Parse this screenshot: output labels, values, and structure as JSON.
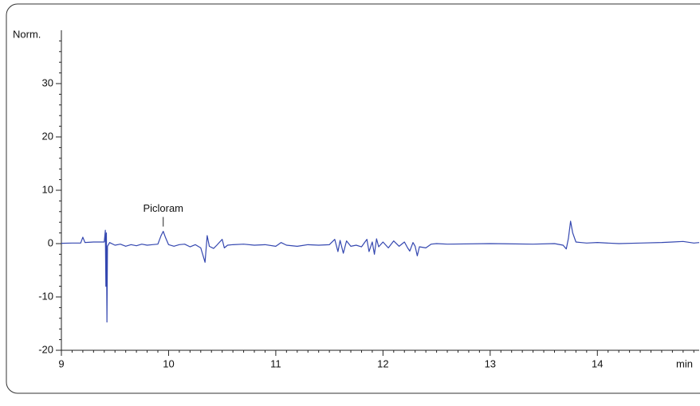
{
  "chart_data": {
    "type": "line",
    "y_label": "Norm.",
    "x_label": "min",
    "x": [
      9.0,
      9.1,
      9.18,
      9.2,
      9.22,
      9.3,
      9.4,
      9.41,
      9.415,
      9.42,
      9.425,
      9.43,
      9.45,
      9.5,
      9.55,
      9.6,
      9.65,
      9.7,
      9.75,
      9.8,
      9.85,
      9.9,
      9.93,
      9.95,
      9.97,
      10.0,
      10.05,
      10.1,
      10.15,
      10.2,
      10.25,
      10.3,
      10.34,
      10.36,
      10.38,
      10.42,
      10.45,
      10.5,
      10.52,
      10.55,
      10.6,
      10.7,
      10.8,
      10.9,
      11.0,
      11.05,
      11.1,
      11.2,
      11.3,
      11.4,
      11.5,
      11.55,
      11.58,
      11.6,
      11.63,
      11.66,
      11.7,
      11.75,
      11.8,
      11.85,
      11.87,
      11.9,
      11.92,
      11.94,
      11.96,
      12.0,
      12.05,
      12.1,
      12.15,
      12.2,
      12.23,
      12.25,
      12.28,
      12.3,
      12.32,
      12.34,
      12.4,
      12.45,
      12.5,
      12.6,
      13.0,
      13.4,
      13.6,
      13.68,
      13.71,
      13.73,
      13.75,
      13.77,
      13.8,
      13.85,
      13.9,
      14.0,
      14.2,
      14.4,
      14.6,
      14.7,
      14.8,
      14.9,
      14.95
    ],
    "series": [
      {
        "color": "#3447b0",
        "values": [
          0.05,
          0.1,
          0.1,
          1.2,
          0.2,
          0.3,
          0.3,
          2.5,
          -8,
          2,
          -14.7,
          -0.5,
          0.2,
          -0.3,
          -0.1,
          -0.5,
          -0.2,
          -0.4,
          -0.1,
          -0.3,
          -0.2,
          -0.1,
          1.5,
          2.3,
          1.2,
          -0.2,
          -0.5,
          -0.2,
          -0.1,
          -0.6,
          -0.2,
          -0.8,
          -3.5,
          1.5,
          -0.5,
          -0.9,
          -0.3,
          0.8,
          -0.8,
          -0.3,
          -0.2,
          -0.1,
          -0.3,
          -0.2,
          -0.5,
          0.2,
          -0.3,
          -0.5,
          -0.2,
          -0.3,
          -0.2,
          0.8,
          -1.5,
          0.6,
          -1.8,
          0.5,
          -0.5,
          -0.3,
          -0.6,
          0.8,
          -1.5,
          0.3,
          -2,
          0.9,
          -0.6,
          0.3,
          -0.8,
          0.5,
          -0.5,
          0.3,
          -0.8,
          -1.4,
          0.2,
          -0.5,
          -2.3,
          -0.6,
          -0.8,
          -0.1,
          0,
          -0.1,
          0,
          -0.1,
          0,
          -0.3,
          -1.0,
          1,
          4.2,
          2,
          0.3,
          0.2,
          0.1,
          0.2,
          0,
          0.1,
          0.2,
          0.3,
          0.4,
          0.1,
          0.2
        ]
      }
    ],
    "annotations": [
      {
        "text": "Picloram",
        "x": 9.95
      }
    ],
    "xlim": [
      9,
      14.95
    ],
    "ylim": [
      -20,
      40
    ],
    "xticks": [
      9,
      10,
      11,
      12,
      13,
      14
    ],
    "yticks": [
      -20,
      -10,
      0,
      10,
      20,
      30
    ]
  }
}
